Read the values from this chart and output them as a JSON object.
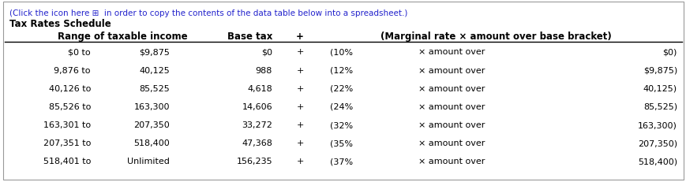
{
  "title_line1": "(Click the icon here ⊞  in order to copy the contents of the data table below into a spreadsheet.)",
  "title_line2": "Tax Rates Schedule",
  "col_headers": [
    "Range of taxable income",
    "Base tax",
    "+",
    "(Marginal rate × amount over base bracket)"
  ],
  "rows": [
    {
      "from": "$0 to",
      "to": "$9,875",
      "base": "$0",
      "plus": "+",
      "rate": "(10%",
      "x": "× amount over",
      "over": "$0)"
    },
    {
      "from": "9,876 to",
      "to": "40,125",
      "base": "988",
      "plus": "+",
      "rate": "(12%",
      "x": "× amount over",
      "over": "$9,875)"
    },
    {
      "from": "40,126 to",
      "to": "85,525",
      "base": "4,618",
      "plus": "+",
      "rate": "(22%",
      "x": "× amount over",
      "over": "40,125)"
    },
    {
      "from": "85,526 to",
      "to": "163,300",
      "base": "14,606",
      "plus": "+",
      "rate": "(24%",
      "x": "× amount over",
      "over": "85,525)"
    },
    {
      "from": "163,301 to",
      "to": "207,350",
      "base": "33,272",
      "plus": "+",
      "rate": "(32%",
      "x": "× amount over",
      "over": "163,300)"
    },
    {
      "from": "207,351 to",
      "to": "518,400",
      "base": "47,368",
      "plus": "+",
      "rate": "(35%",
      "x": "× amount over",
      "over": "207,350)"
    },
    {
      "from": "518,401 to",
      "to": "Unlimited",
      "base": "156,235",
      "plus": "+",
      "rate": "(37%",
      "x": "× amount over",
      "over": "518,400)"
    }
  ],
  "bg_color": "#ffffff",
  "border_color": "#999999",
  "text_color": "#000000",
  "blue_color": "#2222cc",
  "font_family": "DejaVu Sans",
  "font_size": 8.0,
  "header_font_size": 8.5,
  "fig_width": 8.7,
  "fig_height": 2.32,
  "dpi": 100
}
